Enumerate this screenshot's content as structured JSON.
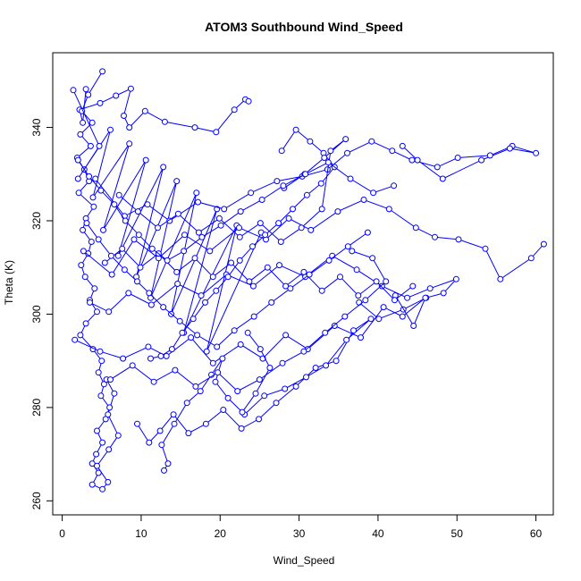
{
  "chart_data": {
    "type": "scatter",
    "title": "ATOM3 Southbound Wind_Speed",
    "xlabel": "Wind_Speed",
    "ylabel": "Theta (K)",
    "xlim": [
      -1.2,
      62.2
    ],
    "ylim": [
      257.0,
      356.0
    ],
    "xticks": [
      0,
      10,
      20,
      30,
      40,
      50,
      60
    ],
    "yticks": [
      260,
      280,
      300,
      320,
      340
    ],
    "grid": false,
    "style": {
      "color": "#0000ff",
      "marker": "open-circle",
      "connect": "line"
    },
    "series": [
      {
        "x": [
          3.0,
          2.6,
          2.2,
          4.8,
          6.8,
          8.7,
          7.8,
          8.5,
          10.5,
          13.0,
          16.8,
          19.5,
          21.8,
          23.2,
          23.6
        ],
        "y": [
          348.2,
          341.0,
          343.8,
          345.2,
          346.8,
          348.3,
          342.5,
          340.0,
          343.5,
          341.2,
          340.0,
          339.0,
          343.8,
          346.0,
          345.6
        ]
      },
      {
        "x": [
          5.1,
          3.3,
          2.5,
          3.8,
          2.3,
          3.6,
          1.9,
          2.8,
          3.4,
          2.1,
          4.0,
          3.0,
          2.6,
          3.7,
          3.3,
          2.4,
          2.9,
          4.1,
          3.5,
          4.4,
          3.0,
          2.3,
          3.9,
          5.0,
          4.6,
          5.3,
          4.9,
          6.0,
          5.5,
          4.4,
          5.1,
          4.3,
          3.8,
          4.6,
          3.8,
          5.1,
          5.8,
          4.4,
          5.9,
          7.1,
          5.8,
          6.6,
          5.6
        ],
        "y": [
          352.0,
          347.0,
          343.5,
          341.0,
          338.5,
          336.0,
          333.5,
          331.0,
          328.5,
          326.0,
          323.0,
          320.5,
          318.0,
          315.5,
          313.0,
          310.5,
          308.0,
          305.5,
          303.0,
          300.5,
          298.0,
          295.5,
          292.5,
          290.0,
          287.5,
          285.0,
          282.5,
          280.0,
          277.5,
          275.0,
          272.5,
          270.0,
          268.0,
          266.0,
          263.5,
          262.5,
          264.0,
          267.5,
          271.0,
          274.0,
          278.5,
          283.0,
          286.0
        ]
      },
      {
        "x": [
          1.4,
          4.7,
          2.0,
          6.1,
          3.9,
          8.5,
          5.2,
          10.6,
          7.1,
          12.8,
          9.4,
          14.5,
          11.2,
          17.0,
          13.8,
          19.6,
          15.4,
          22.1,
          18.3,
          25.2
        ],
        "y": [
          348.0,
          336.0,
          329.0,
          339.5,
          325.0,
          336.5,
          318.0,
          333.0,
          312.5,
          331.5,
          308.0,
          328.5,
          303.5,
          326.0,
          300.0,
          322.5,
          296.0,
          319.0,
          292.0,
          317.5
        ]
      },
      {
        "x": [
          4.2,
          7.9,
          10.8,
          13.6,
          17.2,
          20.5,
          23.9,
          27.2,
          30.4,
          33.6,
          36.1,
          39.2,
          41.8,
          44.3,
          47.5,
          50.1,
          54.2,
          57.0,
          60.0,
          56.7,
          53.1,
          48.2,
          45.0,
          43.1
        ],
        "y": [
          329.0,
          321.0,
          323.5,
          320.0,
          324.0,
          322.5,
          326.0,
          328.5,
          329.5,
          331.0,
          334.5,
          337.0,
          335.0,
          333.0,
          331.5,
          333.5,
          334.0,
          336.0,
          334.5,
          335.5,
          333.0,
          329.0,
          333.0,
          336.0
        ]
      },
      {
        "x": [
          2.7,
          6.3,
          9.1,
          12.2,
          15.5,
          18.7,
          22.4,
          25.8,
          28.7,
          31.5,
          34.9,
          38.2,
          41.4,
          44.8,
          47.2,
          50.2,
          53.6,
          55.5,
          59.4,
          61.0
        ],
        "y": [
          313.5,
          308.5,
          316.0,
          312.0,
          317.0,
          313.5,
          318.5,
          316.0,
          320.5,
          318.0,
          322.0,
          324.5,
          322.5,
          318.5,
          316.5,
          316.0,
          314.0,
          307.5,
          312.0,
          315.0
        ]
      },
      {
        "x": [
          3.5,
          5.9,
          8.4,
          11.3,
          14.6,
          17.6,
          20.8,
          24.2,
          27.5,
          30.8,
          34.2,
          37.3,
          40.5,
          43.7,
          46.6,
          49.9,
          48.3,
          46.1,
          43.2,
          40.1,
          37.6
        ],
        "y": [
          302.5,
          300.5,
          304.5,
          302.0,
          306.5,
          304.0,
          308.5,
          306.0,
          310.5,
          308.0,
          312.5,
          309.5,
          306.0,
          303.5,
          305.5,
          307.5,
          304.5,
          303.5,
          301.0,
          299.0,
          302.5
        ]
      },
      {
        "x": [
          1.6,
          4.8,
          7.7,
          10.9,
          13.2,
          16.3,
          19.1,
          22.6,
          25.4,
          28.3,
          31.1,
          34.5,
          37.8,
          40.7,
          43.1,
          46.0,
          44.5,
          42.2
        ],
        "y": [
          294.5,
          292.0,
          290.5,
          293.0,
          291.0,
          295.0,
          289.5,
          293.5,
          290.5,
          295.5,
          292.5,
          297.5,
          295.0,
          301.5,
          299.5,
          303.5,
          297.5,
          304.0
        ]
      },
      {
        "x": [
          9.5,
          11.0,
          12.4,
          14.1,
          16.0,
          18.2,
          20.4,
          22.7,
          24.9,
          27.1,
          29.6,
          32.1,
          34.7,
          36.9,
          39.1,
          36.0,
          33.4,
          30.9,
          28.2,
          25.6,
          23.1
        ],
        "y": [
          276.5,
          272.5,
          275.0,
          278.5,
          274.5,
          276.5,
          279.5,
          275.5,
          277.5,
          281.0,
          284.5,
          288.5,
          290.0,
          296.5,
          299.0,
          294.5,
          289.0,
          286.5,
          284.0,
          282.5,
          278.5
        ]
      },
      {
        "x": [
          12.9,
          13.4,
          12.6,
          14.2,
          15.8,
          17.5,
          18.9,
          20.3,
          19.4,
          21.0,
          22.8,
          24.5,
          26.3,
          25.1,
          23.5
        ],
        "y": [
          266.5,
          268.0,
          272.0,
          276.5,
          281.0,
          283.5,
          287.0,
          290.5,
          285.5,
          282.0,
          279.0,
          283.0,
          288.5,
          292.5,
          296.0
        ]
      },
      {
        "x": [
          6.1,
          8.9,
          11.6,
          14.3,
          16.9,
          19.7,
          22.2,
          25.0,
          27.9,
          30.6,
          33.3,
          35.8,
          38.4,
          41.0,
          39.3,
          36.7
        ],
        "y": [
          286.0,
          289.0,
          285.5,
          288.0,
          284.5,
          287.5,
          283.5,
          286.0,
          289.5,
          292.0,
          296.0,
          299.5,
          303.0,
          307.0,
          312.0,
          313.5
        ]
      },
      {
        "x": [
          11.2,
          12.5,
          13.9,
          15.2,
          16.6,
          18.1,
          19.5,
          21.0,
          22.5,
          24.1,
          25.7,
          27.4,
          29.2,
          31.0,
          32.8,
          34.5,
          33.1,
          31.4,
          29.6,
          27.8
        ],
        "y": [
          290.5,
          291.0,
          292.5,
          296.0,
          299.0,
          302.5,
          305.0,
          308.0,
          311.5,
          314.5,
          317.0,
          319.5,
          322.5,
          325.5,
          328.0,
          331.5,
          334.5,
          337.0,
          339.5,
          335.0
        ]
      },
      {
        "x": [
          7.2,
          9.6,
          12.1,
          14.7,
          17.3,
          19.9,
          22.5,
          25.1,
          27.7,
          30.3,
          32.9,
          34.0,
          35.9,
          33.2,
          30.7,
          28.1
        ],
        "y": [
          325.5,
          322.0,
          318.5,
          321.5,
          317.5,
          320.5,
          316.5,
          319.5,
          315.5,
          318.5,
          322.5,
          335.0,
          337.5,
          333.5,
          330.0,
          327.0
        ]
      },
      {
        "x": [
          5.4,
          7.6,
          9.9,
          12.2,
          14.5,
          16.8,
          19.1,
          21.4,
          23.7,
          26.0,
          28.3,
          30.6,
          32.9,
          35.2,
          37.5,
          39.8,
          42.1,
          44.4
        ],
        "y": [
          311.0,
          314.0,
          310.0,
          313.0,
          309.0,
          312.0,
          308.0,
          311.0,
          307.0,
          310.0,
          306.0,
          309.0,
          305.0,
          308.0,
          304.0,
          307.0,
          303.0,
          306.0
        ]
      },
      {
        "x": [
          3.1,
          4.6,
          6.2,
          7.9,
          9.5,
          11.0,
          12.8,
          14.9,
          17.1,
          19.6,
          21.8,
          24.3,
          26.5,
          28.9,
          31.3,
          33.8,
          36.2,
          38.7
        ],
        "y": [
          319.5,
          316.0,
          312.5,
          309.5,
          307.0,
          304.5,
          301.5,
          298.5,
          295.5,
          293.0,
          296.5,
          299.5,
          302.5,
          305.5,
          308.5,
          311.5,
          314.5,
          317.5
        ]
      },
      {
        "x": [
          2.0,
          3.4,
          4.9,
          6.6,
          8.0,
          9.7,
          11.4,
          13.3,
          15.4,
          17.7,
          20.1,
          22.6,
          25.3,
          28.0,
          30.8,
          33.7,
          36.5,
          39.4,
          42.0
        ],
        "y": [
          333.0,
          329.5,
          326.5,
          323.5,
          320.0,
          317.0,
          314.0,
          311.5,
          313.5,
          316.5,
          319.0,
          322.0,
          324.5,
          327.5,
          330.0,
          332.5,
          329.0,
          326.0,
          327.5
        ]
      }
    ]
  }
}
